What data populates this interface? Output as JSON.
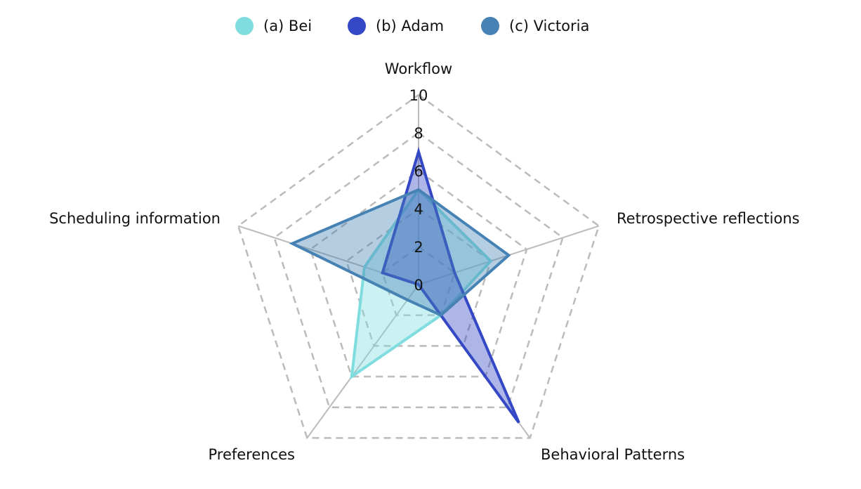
{
  "chart_data": {
    "type": "radar",
    "axes": [
      "Workflow",
      "Retrospective reflections",
      "Behavioral Patterns",
      "Preferences",
      "Scheduling information"
    ],
    "rlim": [
      0,
      10
    ],
    "rticks": [
      "0",
      "2",
      "4",
      "6",
      "8",
      "10"
    ],
    "grid": true,
    "legend": "top",
    "series": [
      {
        "name": "(a) Bei",
        "color": "#7fdde0",
        "values": [
          5,
          4,
          2,
          6,
          3
        ]
      },
      {
        "name": "(b) Adam",
        "color": "#3448c5",
        "values": [
          7,
          2,
          9,
          0,
          2
        ]
      },
      {
        "name": "(c) Victoria",
        "color": "#4682b4",
        "values": [
          5,
          5,
          2,
          1,
          7
        ]
      }
    ]
  }
}
